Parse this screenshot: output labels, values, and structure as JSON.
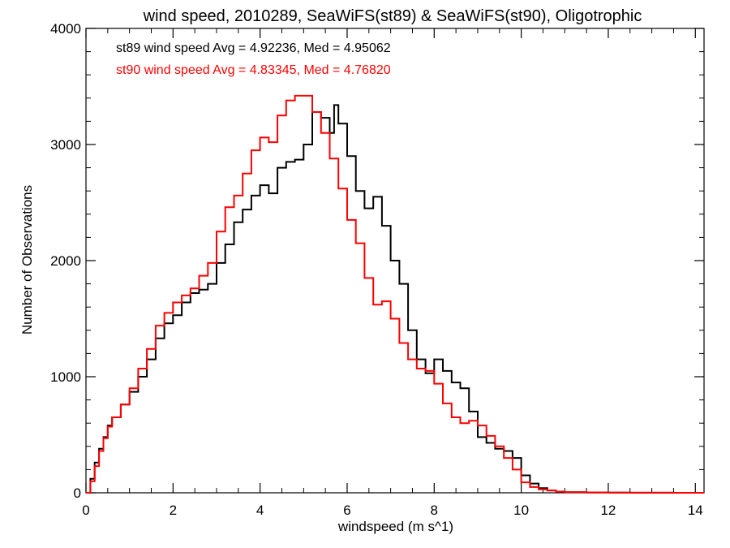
{
  "chart_data": {
    "type": "line",
    "title": "wind speed, 2010289, SeaWiFS(st89) & SeaWiFS(st90), Oligotrophic",
    "xlabel": "windspeed (m s^1)",
    "ylabel": "Number of Observations",
    "xlim": [
      0,
      14.2
    ],
    "ylim": [
      0,
      4000
    ],
    "xticks": [
      0,
      2,
      4,
      6,
      8,
      10,
      12,
      14
    ],
    "yticks": [
      0,
      1000,
      2000,
      3000,
      4000
    ],
    "xtick_labels": [
      "0",
      "2",
      "4",
      "6",
      "8",
      "10",
      "12",
      "14"
    ],
    "ytick_labels": [
      "0",
      "1000",
      "2000",
      "3000",
      "4000"
    ],
    "grid": false,
    "legend_position": "top-left",
    "series": [
      {
        "name": "st89 wind speed",
        "legend_text": "st89 wind speed Avg = 4.92236, Med = 4.95062",
        "color": "#000000",
        "x": [
          0.0,
          0.1,
          0.2,
          0.3,
          0.4,
          0.5,
          0.6,
          0.8,
          1.0,
          1.2,
          1.4,
          1.6,
          1.8,
          2.0,
          2.2,
          2.4,
          2.6,
          2.8,
          3.0,
          3.2,
          3.4,
          3.6,
          3.8,
          4.0,
          4.2,
          4.4,
          4.6,
          4.8,
          5.0,
          5.2,
          5.4,
          5.6,
          5.7,
          5.8,
          6.0,
          6.2,
          6.4,
          6.6,
          6.8,
          7.0,
          7.2,
          7.4,
          7.6,
          7.8,
          8.0,
          8.2,
          8.4,
          8.6,
          8.8,
          9.0,
          9.2,
          9.4,
          9.6,
          9.8,
          10.0,
          10.2,
          10.4,
          10.6,
          10.8,
          11.0,
          11.5,
          12.0,
          12.5,
          13.0,
          13.5,
          14.2
        ],
        "y": [
          0,
          120,
          260,
          380,
          480,
          580,
          650,
          760,
          870,
          1000,
          1150,
          1330,
          1460,
          1530,
          1640,
          1720,
          1750,
          1800,
          1980,
          2140,
          2330,
          2440,
          2560,
          2650,
          2580,
          2800,
          2850,
          2870,
          3000,
          3280,
          3230,
          3100,
          3340,
          3180,
          2900,
          2600,
          2450,
          2550,
          2300,
          2000,
          1800,
          1400,
          1150,
          1030,
          1150,
          1050,
          950,
          900,
          700,
          480,
          430,
          380,
          360,
          300,
          150,
          80,
          40,
          20,
          10,
          5,
          3,
          2,
          1,
          1,
          0,
          0
        ]
      },
      {
        "name": "st90 wind speed",
        "legend_text": "st90 wind speed Avg = 4.83345, Med = 4.76820",
        "color": "#ff0000",
        "x": [
          0.0,
          0.1,
          0.2,
          0.3,
          0.4,
          0.5,
          0.6,
          0.8,
          1.0,
          1.2,
          1.4,
          1.6,
          1.8,
          2.0,
          2.2,
          2.4,
          2.6,
          2.8,
          3.0,
          3.2,
          3.4,
          3.6,
          3.8,
          4.0,
          4.2,
          4.4,
          4.6,
          4.8,
          5.0,
          5.2,
          5.4,
          5.6,
          5.8,
          6.0,
          6.2,
          6.4,
          6.6,
          6.8,
          7.0,
          7.2,
          7.4,
          7.6,
          7.8,
          8.0,
          8.2,
          8.4,
          8.6,
          8.8,
          9.0,
          9.2,
          9.4,
          9.6,
          9.8,
          10.0,
          10.2,
          10.4,
          10.6,
          10.8,
          11.0,
          11.5,
          12.0,
          12.5,
          13.0,
          13.5,
          14.2
        ],
        "y": [
          0,
          100,
          230,
          360,
          470,
          570,
          650,
          760,
          900,
          1070,
          1240,
          1440,
          1550,
          1640,
          1700,
          1760,
          1870,
          1980,
          2250,
          2460,
          2560,
          2750,
          2950,
          3060,
          3020,
          3250,
          3380,
          3420,
          3420,
          3280,
          3100,
          2880,
          2620,
          2350,
          2150,
          1850,
          1620,
          1650,
          1500,
          1290,
          1150,
          1070,
          1050,
          940,
          770,
          650,
          600,
          620,
          580,
          490,
          400,
          300,
          200,
          90,
          50,
          30,
          20,
          10,
          5,
          3,
          2,
          1,
          1,
          0,
          0
        ]
      }
    ]
  }
}
